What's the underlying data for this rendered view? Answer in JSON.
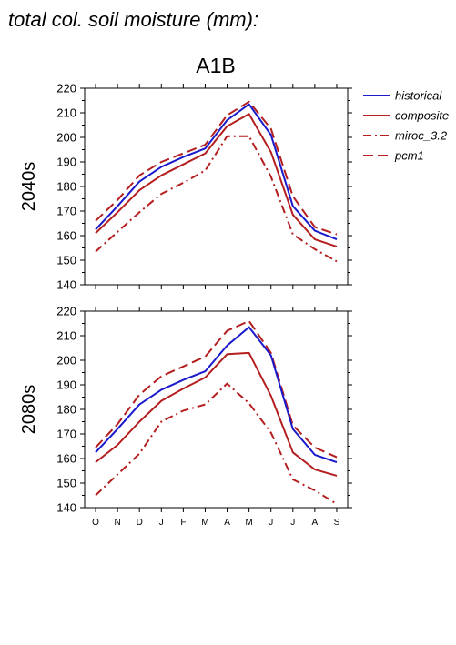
{
  "figure": {
    "title": "total col. soil moisture (mm):",
    "scenario": "A1B"
  },
  "legend": [
    {
      "name": "historical",
      "color": "#1a1acc",
      "dash": "solid"
    },
    {
      "name": "composite",
      "color": "#b41e1e",
      "dash": "solid"
    },
    {
      "name": "miroc_3.2",
      "color": "#b41e1e",
      "dash": "dashdot"
    },
    {
      "name": "pcm1",
      "color": "#b41e1e",
      "dash": "dashed"
    }
  ],
  "chart_data": [
    {
      "type": "line",
      "title": "A1B",
      "panel_label": "2040s",
      "categories": [
        "O",
        "N",
        "D",
        "J",
        "F",
        "M",
        "A",
        "M",
        "J",
        "J",
        "A",
        "S"
      ],
      "ylim": [
        140,
        220
      ],
      "yticks": [
        140,
        150,
        160,
        170,
        180,
        190,
        200,
        210,
        220
      ],
      "series": [
        {
          "name": "historical",
          "values": [
            162.5,
            172,
            182,
            188,
            192,
            195.5,
            207,
            213.5,
            201,
            172,
            162,
            158.5
          ]
        },
        {
          "name": "composite",
          "values": [
            161,
            169.5,
            178.5,
            184.5,
            189,
            193.5,
            204.5,
            209.5,
            194,
            168.5,
            158.5,
            155.5
          ]
        },
        {
          "name": "miroc_3.2",
          "values": [
            153.5,
            161.5,
            169.5,
            177,
            181.5,
            186.5,
            200.5,
            200.5,
            184,
            160.5,
            154.5,
            149.5
          ]
        },
        {
          "name": "pcm1",
          "values": [
            166,
            174.5,
            184.5,
            190,
            193.5,
            197,
            209,
            214.5,
            203.5,
            176,
            163.5,
            160.5
          ]
        }
      ]
    },
    {
      "type": "line",
      "title": "",
      "panel_label": "2080s",
      "categories": [
        "O",
        "N",
        "D",
        "J",
        "F",
        "M",
        "A",
        "M",
        "J",
        "J",
        "A",
        "S"
      ],
      "ylim": [
        140,
        220
      ],
      "yticks": [
        140,
        150,
        160,
        170,
        180,
        190,
        200,
        210,
        220
      ],
      "series": [
        {
          "name": "historical",
          "values": [
            162.5,
            172,
            182,
            188,
            192,
            195.5,
            206,
            213.5,
            202,
            172,
            161.5,
            158.5
          ]
        },
        {
          "name": "composite",
          "values": [
            158.5,
            165.5,
            175,
            183.5,
            188.5,
            193,
            202.5,
            203,
            185.5,
            162.5,
            155.5,
            153
          ]
        },
        {
          "name": "miroc_3.2",
          "values": [
            145,
            153.5,
            162,
            175,
            179.5,
            182,
            190.5,
            182.5,
            170.5,
            151.5,
            147,
            141.5
          ]
        },
        {
          "name": "pcm1",
          "values": [
            164.5,
            174,
            186,
            193.5,
            197.5,
            201.5,
            212,
            216,
            203,
            173.5,
            164.5,
            160.5
          ]
        }
      ]
    }
  ]
}
